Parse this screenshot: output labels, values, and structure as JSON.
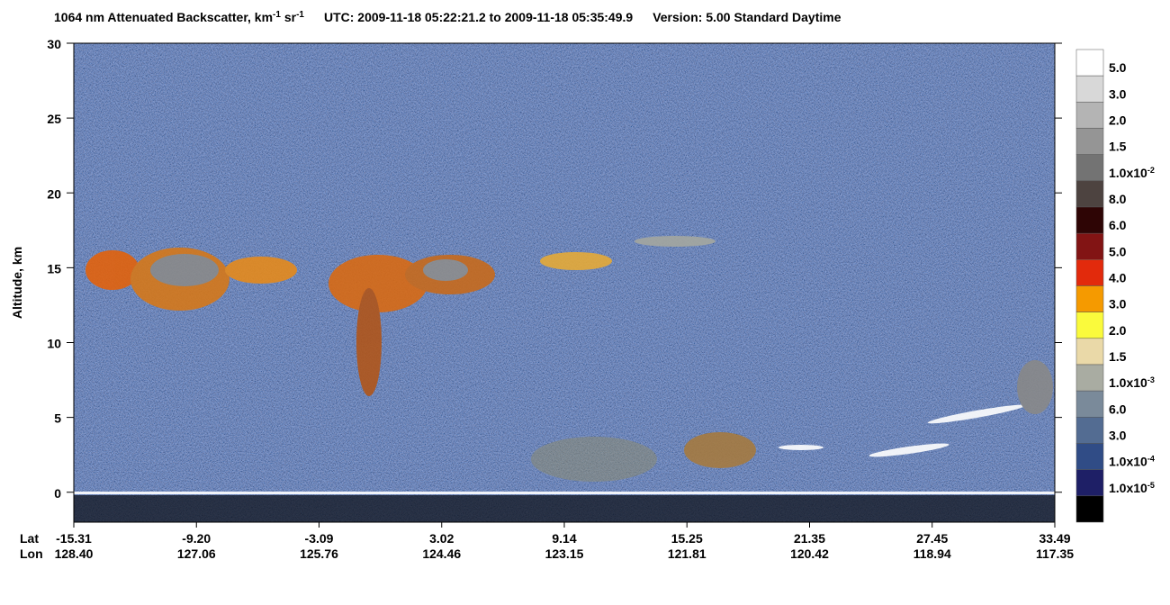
{
  "chart_data": {
    "type": "heatmap",
    "title": {
      "parts": [
        {
          "text": "1064 nm Attenuated Backscatter, km"
        },
        {
          "text": "-1",
          "sup": true
        },
        {
          "text": " sr"
        },
        {
          "text": "-1",
          "sup": true
        }
      ],
      "time": "UTC:  2009-11-18 05:22:21.2  to  2009-11-18 05:35:49.9",
      "version": "Version: 5.00  Standard  Daytime"
    },
    "y_label": "Altitude, km",
    "ylim": [
      -2,
      30
    ],
    "yticks": [
      0,
      5,
      10,
      15,
      20,
      25,
      30
    ],
    "x_tick_rows": [
      {
        "name": "Lat",
        "labels": [
          "-15.31",
          "-9.20",
          "-3.09",
          "3.02",
          "9.14",
          "15.25",
          "21.35",
          "27.45",
          "33.49"
        ]
      },
      {
        "name": "Lon",
        "labels": [
          "128.40",
          "127.06",
          "125.76",
          "124.46",
          "123.15",
          "121.81",
          "120.42",
          "118.94",
          "117.35"
        ]
      }
    ],
    "colorbar": {
      "colors": [
        "#ffffff",
        "#d8d8d8",
        "#b4b4b4",
        "#959595",
        "#737373",
        "#4d4340",
        "#2e0505",
        "#821414",
        "#e22a0c",
        "#f59a00",
        "#fafa3c",
        "#ead9a8",
        "#a9aca2",
        "#7a8a9a",
        "#536c92",
        "#304c86",
        "#1e1f66",
        "#000000"
      ],
      "labels": [
        {
          "text": "5.0"
        },
        {
          "text": "3.0"
        },
        {
          "text": "2.0"
        },
        {
          "text": "1.5"
        },
        {
          "text": "1.0x10",
          "sup": "-2"
        },
        {
          "text": "8.0"
        },
        {
          "text": "6.0"
        },
        {
          "text": "5.0"
        },
        {
          "text": "4.0"
        },
        {
          "text": "3.0"
        },
        {
          "text": "2.0"
        },
        {
          "text": "1.5"
        },
        {
          "text": "1.0x10",
          "sup": "-3"
        },
        {
          "text": "6.0"
        },
        {
          "text": "3.0"
        },
        {
          "text": "1.0x10",
          "sup": "-4"
        },
        {
          "text": "1.0x10",
          "sup": "-5"
        }
      ]
    }
  }
}
